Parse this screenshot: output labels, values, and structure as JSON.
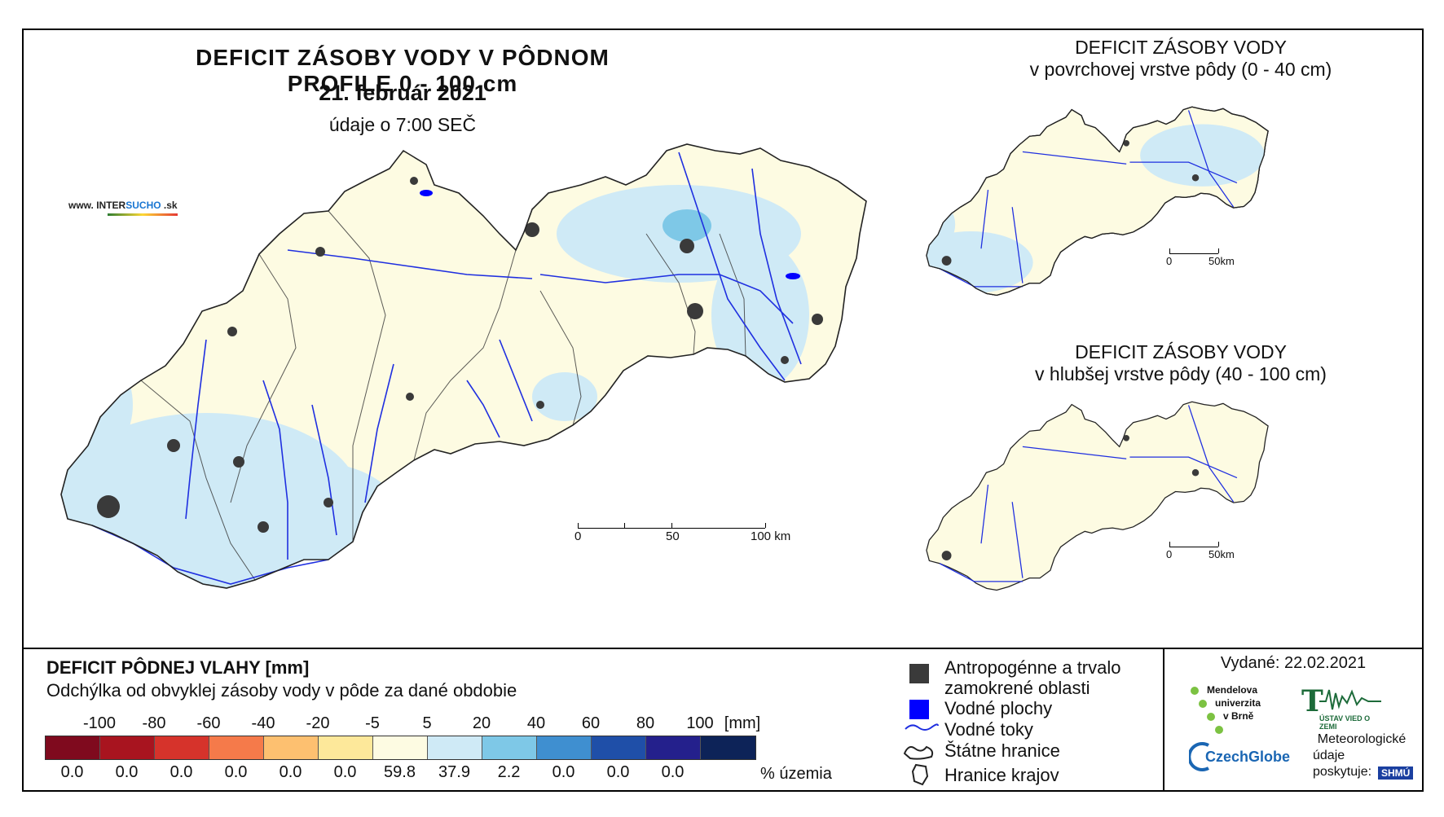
{
  "brand": {
    "prefix": "www. INTER",
    "accent": "SUCHO",
    "suffix": " .sk"
  },
  "main": {
    "title": "DEFICIT ZÁSOBY VODY V PÔDNOM PROFILE 0 - 100 cm",
    "date": "21. február 2021",
    "time": "údaje o 7:00 SEČ",
    "scale": {
      "labels": [
        "0",
        "50",
        "100 km"
      ]
    }
  },
  "top_panel": {
    "title_line1": "DEFICIT ZÁSOBY VODY",
    "title_line2": "v povrchovej vrstve pôdy (0 - 40 cm)",
    "scale": {
      "labels": [
        "0",
        "50km"
      ]
    }
  },
  "bottom_panel": {
    "title_line1": "DEFICIT ZÁSOBY VODY",
    "title_line2": "v hlubšej vrstve pôdy (40 - 100 cm)",
    "scale": {
      "labels": [
        "0",
        "50km"
      ]
    }
  },
  "legend": {
    "title": "DEFICIT PÔDNEJ VLAHY [mm]",
    "subtitle": "Odchýlka od obvyklej zásoby vody v pôde za dané obdobie",
    "bounds": [
      "-100",
      "-80",
      "-60",
      "-40",
      "-20",
      "-5",
      "5",
      "20",
      "40",
      "60",
      "80",
      "100"
    ],
    "unit": "[mm]",
    "colors": [
      "#7f0a1e",
      "#a8141f",
      "#d6332b",
      "#f57a4a",
      "#fdc070",
      "#fde89a",
      "#fdfbe2",
      "#cfeaf6",
      "#7ec8e7",
      "#3f8fd0",
      "#1f4fa8",
      "#24208c",
      "#0d2358"
    ],
    "percentages": [
      "0.0",
      "0.0",
      "0.0",
      "0.0",
      "0.0",
      "0.0",
      "59.8",
      "37.9",
      "2.2",
      "0.0",
      "0.0",
      "0.0"
    ],
    "percent_label": "% územia"
  },
  "symbols": {
    "anthropogenic": "Antropogénne a trvalo zamokrené oblasti",
    "water_areas": "Vodné plochy",
    "water_streams": "Vodné toky",
    "state_border": "Štátne hranice",
    "region_border": "Hranice krajov"
  },
  "issued": "Vydané: 22.02.2021",
  "providers": {
    "mendel": [
      "Mendelova",
      "univerzita",
      "v Brně"
    ],
    "ustav": "ÚSTAV VIED O ZEMI",
    "czechglobe": "CzechGlobe",
    "meteo": [
      "Meteorologické",
      "údaje",
      "poskytuje:"
    ],
    "shmu": "SHMÚ"
  }
}
